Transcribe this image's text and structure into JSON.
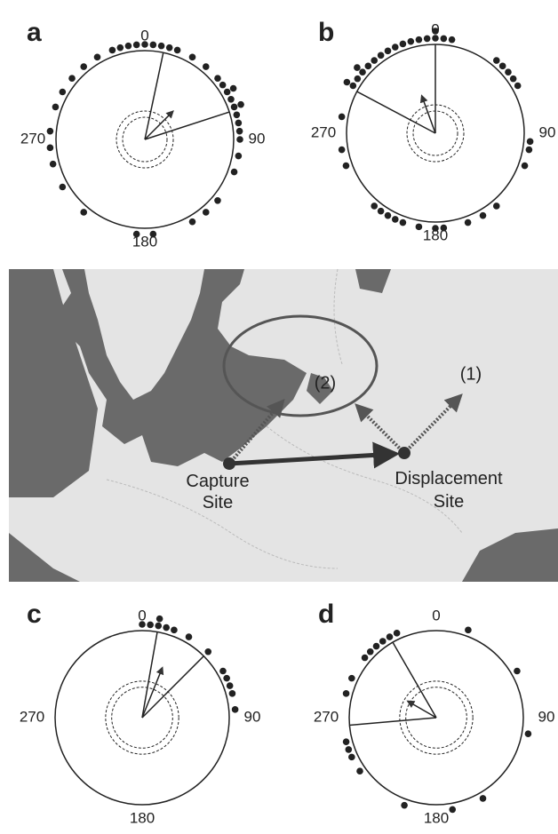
{
  "chart_data": [
    {
      "type": "circular",
      "title": "a",
      "ticks": [
        0,
        90,
        180,
        270
      ],
      "dots": [
        340,
        345,
        350,
        355,
        0,
        5,
        10,
        15,
        20,
        30,
        40,
        50,
        55,
        60,
        60,
        65,
        70,
        70,
        75,
        80,
        85,
        90,
        100,
        110,
        130,
        140,
        150,
        175,
        185,
        220,
        240,
        255,
        265,
        275,
        290,
        300,
        310,
        320,
        330
      ],
      "mean_angle": 45,
      "mean_length": 0.45,
      "ci": [
        12,
        72
      ],
      "thresholds": [
        0.25,
        0.32
      ]
    },
    {
      "type": "circular",
      "title": "b",
      "ticks": [
        0,
        90,
        180,
        270
      ],
      "dots": [
        300,
        300,
        305,
        310,
        310,
        315,
        320,
        325,
        330,
        335,
        340,
        345,
        350,
        355,
        0,
        0,
        5,
        10,
        40,
        45,
        50,
        55,
        60,
        95,
        100,
        110,
        140,
        150,
        160,
        175,
        180,
        190,
        200,
        205,
        210,
        215,
        220,
        250,
        260,
        280
      ],
      "mean_angle": 340,
      "mean_length": 0.45,
      "ci": [
        298,
        0
      ],
      "thresholds": [
        0.25,
        0.32
      ]
    },
    {
      "type": "circular",
      "title": "c",
      "ticks": [
        0,
        90,
        180,
        270
      ],
      "dots": [
        0,
        5,
        10,
        10,
        15,
        20,
        30,
        45,
        60,
        65,
        70,
        75,
        85
      ],
      "mean_angle": 22,
      "mean_length": 0.62,
      "ci": [
        10,
        45
      ],
      "thresholds": [
        0.35,
        0.42
      ]
    },
    {
      "type": "circular",
      "title": "d",
      "ticks": [
        0,
        90,
        180,
        270
      ],
      "dots": [
        335,
        330,
        325,
        320,
        315,
        310,
        295,
        285,
        255,
        250,
        245,
        20,
        60,
        100,
        150,
        170,
        200,
        235
      ],
      "mean_angle": 300,
      "mean_length": 0.38,
      "ci": [
        330,
        265
      ],
      "thresholds": [
        0.35,
        0.42
      ]
    }
  ],
  "map": {
    "label_1": "(1)",
    "label_2": "(2)",
    "capture": "Capture Site",
    "displacement": "Displacement Site"
  }
}
